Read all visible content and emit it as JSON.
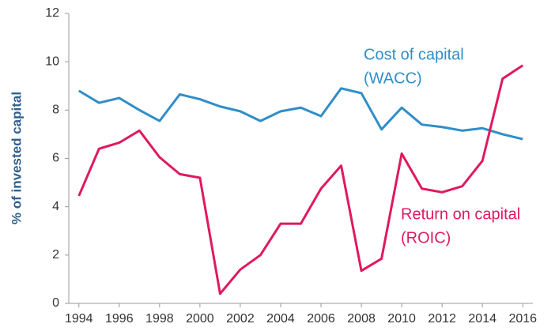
{
  "chart_data": {
    "type": "line",
    "y_label": "% of invested capital",
    "x": [
      1994,
      1995,
      1996,
      1997,
      1998,
      1999,
      2000,
      2001,
      2002,
      2003,
      2004,
      2005,
      2006,
      2007,
      2008,
      2009,
      2010,
      2011,
      2012,
      2013,
      2014,
      2015,
      2016
    ],
    "series": [
      {
        "name": "Cost of capital (WACC)",
        "color": "#2f8ec9",
        "values": [
          8.8,
          8.3,
          8.5,
          8.0,
          7.55,
          8.65,
          8.45,
          8.15,
          7.95,
          7.55,
          7.95,
          8.1,
          7.75,
          8.9,
          8.7,
          7.2,
          8.1,
          7.4,
          7.3,
          7.15,
          7.25,
          7.0,
          6.8
        ]
      },
      {
        "name": "Return on capital (ROIC)",
        "color": "#e0195f",
        "values": [
          4.45,
          6.4,
          6.65,
          7.15,
          6.05,
          5.35,
          5.2,
          0.4,
          1.4,
          2.0,
          3.3,
          3.3,
          4.75,
          5.7,
          1.35,
          1.85,
          6.2,
          4.75,
          4.6,
          4.85,
          5.9,
          9.3,
          9.85
        ]
      }
    ],
    "annotations": [
      {
        "lines": [
          "Cost of capital",
          "(WACC)"
        ]
      },
      {
        "lines": [
          "Return on capital",
          "(ROIC)"
        ]
      }
    ],
    "xlim": [
      1993.5,
      2016.5
    ],
    "xticks": [
      1994,
      1996,
      1998,
      2000,
      2002,
      2004,
      2006,
      2008,
      2010,
      2012,
      2014,
      2016
    ],
    "ylim": [
      0,
      12
    ],
    "yticks": [
      0,
      2,
      4,
      6,
      8,
      10,
      12
    ],
    "grid": false
  }
}
